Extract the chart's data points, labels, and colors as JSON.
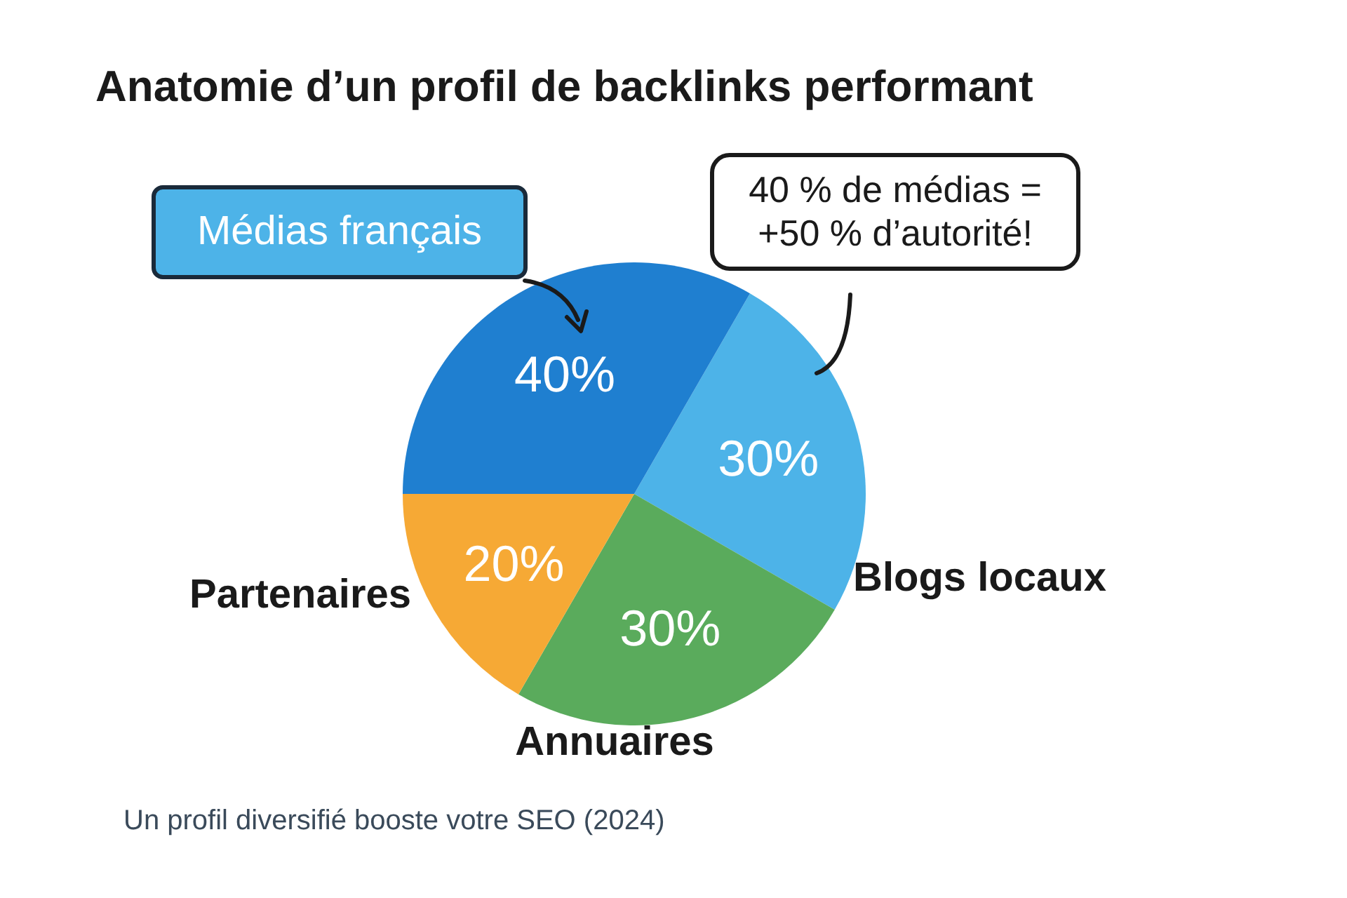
{
  "chart_data": {
    "type": "pie",
    "title": "Anatomie d’un profil de backlinks performant",
    "categories": [
      "Blogs locaux",
      "Annuaires",
      "Partenaires",
      "Médias français"
    ],
    "values": [
      30,
      30,
      20,
      40
    ],
    "value_labels": [
      "30%",
      "30%",
      "20%",
      "40%"
    ],
    "colors": [
      "#4db3e8",
      "#5aab5c",
      "#f6a935",
      "#1f7fd0"
    ],
    "annotations": [
      "40 % de médias = +50 % d’autorité!",
      "Un profil diversifié booste votre SEO (2024)"
    ]
  }
}
